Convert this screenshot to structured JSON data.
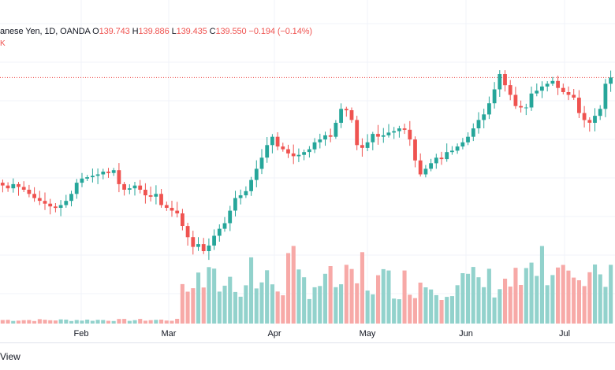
{
  "legend": {
    "symbol": "anese Yen, 1D, OANDA",
    "open_key": "O",
    "open": "139.743",
    "high_key": "H",
    "high": "139.886",
    "low_key": "L",
    "low": "139.435",
    "close_key": "C",
    "close": "139.550",
    "change": "−0.194 (−0.14%)"
  },
  "volume_label": "K",
  "footer_text": "View",
  "colors": {
    "up": "#26a69a",
    "down": "#ef5350",
    "vol_up": "#92d2cc",
    "vol_down": "#f7a9a7",
    "grid": "#f0f3fa",
    "price_line": "#ef5350"
  },
  "chart_data": {
    "type": "candlestick",
    "x_labels": [
      "Feb",
      "Mar",
      "Apr",
      "May",
      "Jun",
      "Jul"
    ],
    "last_price": 139.55,
    "closes": [
      131.8,
      131.6,
      131.9,
      131.7,
      131.5,
      131.2,
      130.9,
      130.7,
      130.5,
      130.3,
      130.2,
      130.4,
      130.7,
      131.2,
      132.0,
      132.3,
      132.4,
      132.5,
      132.6,
      132.8,
      132.7,
      132.9,
      131.9,
      131.5,
      131.6,
      131.8,
      131.5,
      131.1,
      131.0,
      131.2,
      130.4,
      130.2,
      130.0,
      129.8,
      128.9,
      128.1,
      127.4,
      127.6,
      127.1,
      127.5,
      128.2,
      128.7,
      129.1,
      130.0,
      130.9,
      131.1,
      131.4,
      132.2,
      133.0,
      133.8,
      134.7,
      135.3,
      134.6,
      134.4,
      134.1,
      133.9,
      134.0,
      134.2,
      134.4,
      134.9,
      135.1,
      135.4,
      135.3,
      136.3,
      137.3,
      137.2,
      136.5,
      134.7,
      134.5,
      134.9,
      135.5,
      135.3,
      135.4,
      135.6,
      135.7,
      135.9,
      135.8,
      135.1,
      133.6,
      132.6,
      133.0,
      133.4,
      133.8,
      133.7,
      134.2,
      134.3,
      134.6,
      134.9,
      135.3,
      135.9,
      136.5,
      136.9,
      137.7,
      138.7,
      139.8,
      139.0,
      138.3,
      137.5,
      137.4,
      137.4,
      138.4,
      138.6,
      138.9,
      139.1,
      139.3,
      138.8,
      138.5,
      138.3,
      138.1,
      137.0,
      136.5,
      136.3,
      136.8,
      137.3,
      139.1,
      139.55
    ],
    "volume_note": "relative volume bars, up/down colored"
  }
}
